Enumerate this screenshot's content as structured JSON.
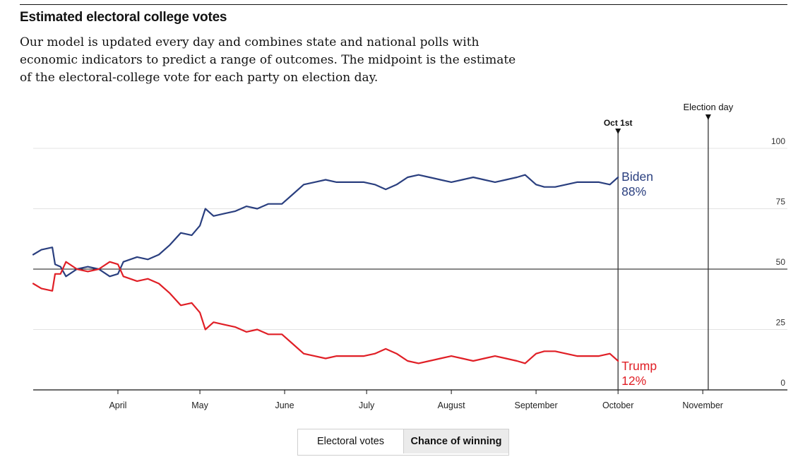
{
  "header": {
    "title": "Estimated electoral college votes",
    "subtitle_lines": [
      "Our model is updated every day and combines state and national polls with",
      "economic indicators to predict a range of outcomes. The midpoint is the estimate",
      "of the electoral-college vote for each party on election day."
    ]
  },
  "toggle": {
    "electoral_votes_label": "Electoral votes",
    "chance_of_winning_label": "Chance of winning",
    "selected": "Chance of winning"
  },
  "colors": {
    "biden": "#2a3f7f",
    "trump": "#e01f26",
    "axis": "#121212",
    "grid": "#e3e3e3",
    "marker": "#333333"
  },
  "chart_data": {
    "type": "line",
    "title": "",
    "xlabel": "",
    "ylabel": "",
    "ylim": [
      0,
      100
    ],
    "y_ticks": [
      0,
      25,
      50,
      75,
      100
    ],
    "y_axis_side": "right",
    "x_range": [
      "2020-03-01",
      "2020-11-30"
    ],
    "x_ticks": [
      {
        "date": "2020-04-01",
        "label": "April"
      },
      {
        "date": "2020-05-01",
        "label": "May"
      },
      {
        "date": "2020-06-01",
        "label": "June"
      },
      {
        "date": "2020-07-01",
        "label": "July"
      },
      {
        "date": "2020-08-01",
        "label": "August"
      },
      {
        "date": "2020-09-01",
        "label": "September"
      },
      {
        "date": "2020-10-01",
        "label": "October"
      },
      {
        "date": "2020-11-01",
        "label": "November"
      }
    ],
    "markers": [
      {
        "date": "2020-10-01",
        "label": "Oct 1st"
      },
      {
        "date": "2020-11-03",
        "label": "Election day"
      }
    ],
    "series": [
      {
        "name": "Biden",
        "end_label": "88%",
        "color": "#2a3f7f",
        "points": [
          [
            "2020-03-01",
            56
          ],
          [
            "2020-03-04",
            58
          ],
          [
            "2020-03-08",
            59
          ],
          [
            "2020-03-09",
            52
          ],
          [
            "2020-03-11",
            51
          ],
          [
            "2020-03-13",
            47
          ],
          [
            "2020-03-17",
            50
          ],
          [
            "2020-03-21",
            51
          ],
          [
            "2020-03-25",
            50
          ],
          [
            "2020-03-29",
            47
          ],
          [
            "2020-04-01",
            48
          ],
          [
            "2020-04-03",
            53
          ],
          [
            "2020-04-08",
            55
          ],
          [
            "2020-04-12",
            54
          ],
          [
            "2020-04-16",
            56
          ],
          [
            "2020-04-20",
            60
          ],
          [
            "2020-04-24",
            65
          ],
          [
            "2020-04-28",
            64
          ],
          [
            "2020-05-01",
            68
          ],
          [
            "2020-05-03",
            75
          ],
          [
            "2020-05-06",
            72
          ],
          [
            "2020-05-10",
            73
          ],
          [
            "2020-05-14",
            74
          ],
          [
            "2020-05-18",
            76
          ],
          [
            "2020-05-22",
            75
          ],
          [
            "2020-05-26",
            77
          ],
          [
            "2020-05-31",
            77
          ],
          [
            "2020-06-04",
            81
          ],
          [
            "2020-06-08",
            85
          ],
          [
            "2020-06-12",
            86
          ],
          [
            "2020-06-16",
            87
          ],
          [
            "2020-06-20",
            86
          ],
          [
            "2020-06-25",
            86
          ],
          [
            "2020-06-30",
            86
          ],
          [
            "2020-07-04",
            85
          ],
          [
            "2020-07-08",
            83
          ],
          [
            "2020-07-12",
            85
          ],
          [
            "2020-07-16",
            88
          ],
          [
            "2020-07-20",
            89
          ],
          [
            "2020-07-24",
            88
          ],
          [
            "2020-07-28",
            87
          ],
          [
            "2020-08-01",
            86
          ],
          [
            "2020-08-05",
            87
          ],
          [
            "2020-08-09",
            88
          ],
          [
            "2020-08-13",
            87
          ],
          [
            "2020-08-17",
            86
          ],
          [
            "2020-08-21",
            87
          ],
          [
            "2020-08-25",
            88
          ],
          [
            "2020-08-28",
            89
          ],
          [
            "2020-09-01",
            85
          ],
          [
            "2020-09-04",
            84
          ],
          [
            "2020-09-08",
            84
          ],
          [
            "2020-09-12",
            85
          ],
          [
            "2020-09-16",
            86
          ],
          [
            "2020-09-20",
            86
          ],
          [
            "2020-09-24",
            86
          ],
          [
            "2020-09-28",
            85
          ],
          [
            "2020-10-01",
            88
          ]
        ]
      },
      {
        "name": "Trump",
        "end_label": "12%",
        "color": "#e01f26",
        "points": [
          [
            "2020-03-01",
            44
          ],
          [
            "2020-03-04",
            42
          ],
          [
            "2020-03-08",
            41
          ],
          [
            "2020-03-09",
            48
          ],
          [
            "2020-03-11",
            48
          ],
          [
            "2020-03-13",
            53
          ],
          [
            "2020-03-17",
            50
          ],
          [
            "2020-03-21",
            49
          ],
          [
            "2020-03-25",
            50
          ],
          [
            "2020-03-29",
            53
          ],
          [
            "2020-04-01",
            52
          ],
          [
            "2020-04-03",
            47
          ],
          [
            "2020-04-08",
            45
          ],
          [
            "2020-04-12",
            46
          ],
          [
            "2020-04-16",
            44
          ],
          [
            "2020-04-20",
            40
          ],
          [
            "2020-04-24",
            35
          ],
          [
            "2020-04-28",
            36
          ],
          [
            "2020-05-01",
            32
          ],
          [
            "2020-05-03",
            25
          ],
          [
            "2020-05-06",
            28
          ],
          [
            "2020-05-10",
            27
          ],
          [
            "2020-05-14",
            26
          ],
          [
            "2020-05-18",
            24
          ],
          [
            "2020-05-22",
            25
          ],
          [
            "2020-05-26",
            23
          ],
          [
            "2020-05-31",
            23
          ],
          [
            "2020-06-04",
            19
          ],
          [
            "2020-06-08",
            15
          ],
          [
            "2020-06-12",
            14
          ],
          [
            "2020-06-16",
            13
          ],
          [
            "2020-06-20",
            14
          ],
          [
            "2020-06-25",
            14
          ],
          [
            "2020-06-30",
            14
          ],
          [
            "2020-07-04",
            15
          ],
          [
            "2020-07-08",
            17
          ],
          [
            "2020-07-12",
            15
          ],
          [
            "2020-07-16",
            12
          ],
          [
            "2020-07-20",
            11
          ],
          [
            "2020-07-24",
            12
          ],
          [
            "2020-07-28",
            13
          ],
          [
            "2020-08-01",
            14
          ],
          [
            "2020-08-05",
            13
          ],
          [
            "2020-08-09",
            12
          ],
          [
            "2020-08-13",
            13
          ],
          [
            "2020-08-17",
            14
          ],
          [
            "2020-08-21",
            13
          ],
          [
            "2020-08-25",
            12
          ],
          [
            "2020-08-28",
            11
          ],
          [
            "2020-09-01",
            15
          ],
          [
            "2020-09-04",
            16
          ],
          [
            "2020-09-08",
            16
          ],
          [
            "2020-09-12",
            15
          ],
          [
            "2020-09-16",
            14
          ],
          [
            "2020-09-20",
            14
          ],
          [
            "2020-09-24",
            14
          ],
          [
            "2020-09-28",
            15
          ],
          [
            "2020-10-01",
            12
          ]
        ]
      }
    ]
  }
}
